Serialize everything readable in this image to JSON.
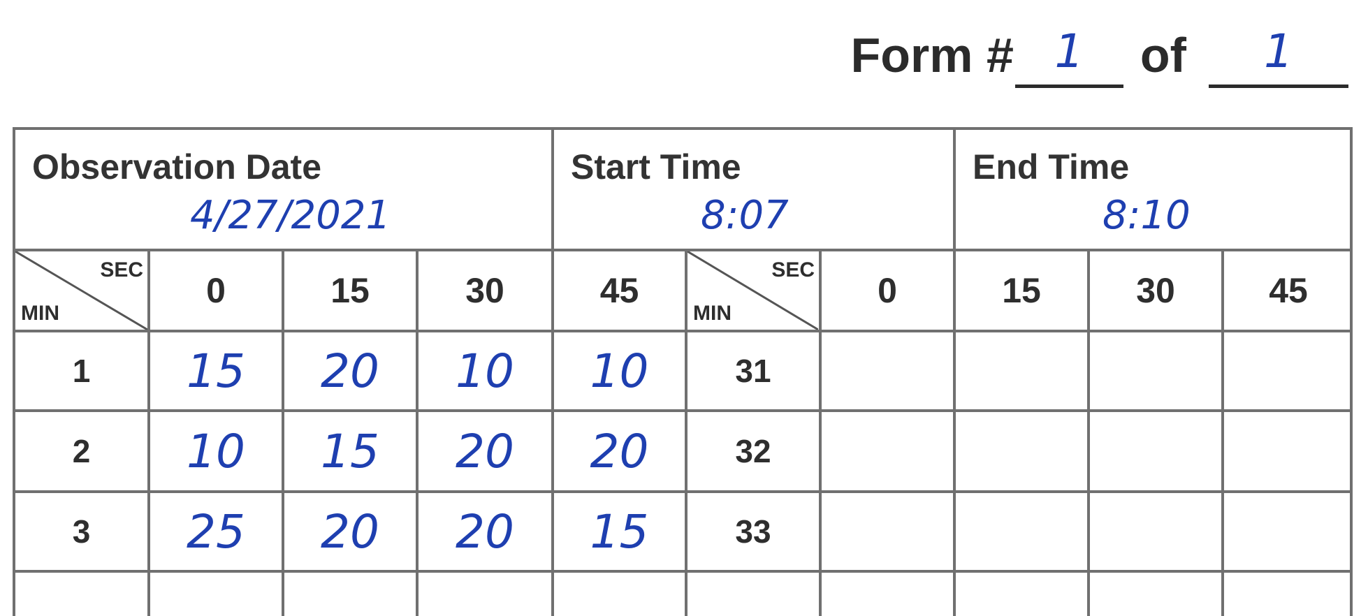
{
  "form": {
    "label": "Form #",
    "of_label": "of",
    "number": "1",
    "total": "1"
  },
  "observation": {
    "date_label": "Observation Date",
    "date_value": "4/27/2021",
    "start_label": "Start Time",
    "start_value": "8:07",
    "end_label": "End Time",
    "end_value": "8:10"
  },
  "corner": {
    "sec": "SEC",
    "min": "MIN"
  },
  "sec_headers": [
    "0",
    "15",
    "30",
    "45"
  ],
  "left_rows": [
    {
      "min": "1",
      "values": [
        "15",
        "20",
        "10",
        "10"
      ]
    },
    {
      "min": "2",
      "values": [
        "10",
        "15",
        "20",
        "20"
      ]
    },
    {
      "min": "3",
      "values": [
        "25",
        "20",
        "20",
        "15"
      ]
    }
  ],
  "right_rows": [
    {
      "min": "31",
      "values": [
        "",
        "",
        "",
        ""
      ]
    },
    {
      "min": "32",
      "values": [
        "",
        "",
        "",
        ""
      ]
    },
    {
      "min": "33",
      "values": [
        "",
        "",
        "",
        ""
      ]
    }
  ]
}
